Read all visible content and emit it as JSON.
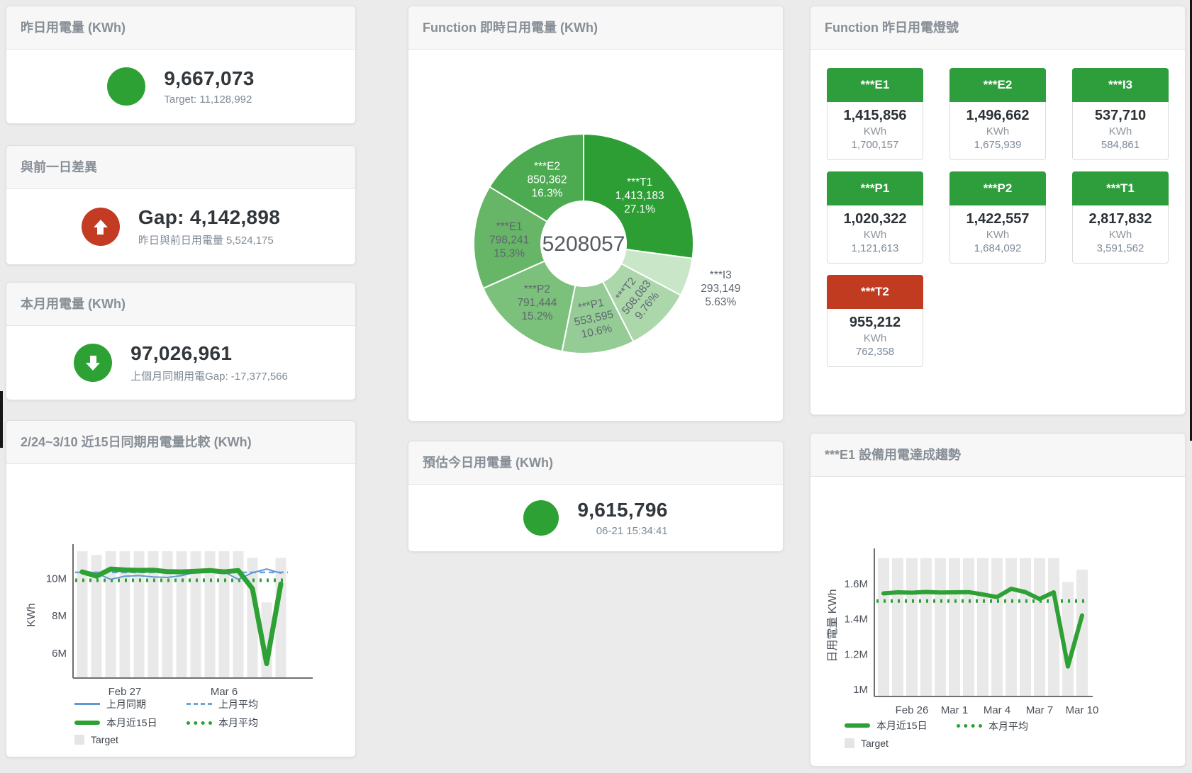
{
  "page": {
    "background": "#ebebeb"
  },
  "colors": {
    "green": "#2ea135",
    "red": "#c23b22",
    "blue_line": "#5e9ad0",
    "blue_dash": "#6aa3d8",
    "target_bar": "#e9e9e9",
    "tile_green": "#2e9e3c",
    "tile_red": "#c13b21"
  },
  "kpi": {
    "yesterday": {
      "title": "昨日用電量 (KWh)",
      "value": "9,667,073",
      "sub": "Target: 11,128,992"
    },
    "diff": {
      "title": "與前一日差異",
      "value": "Gap: 4,142,898",
      "sub": "昨日與前日用電量 5,524,175"
    },
    "month": {
      "title": "本月用電量 (KWh)",
      "value": "97,026,961",
      "sub": "上個月同期用電Gap: -17,377,566"
    },
    "estimate": {
      "title": "預估今日用電量 (KWh)",
      "value": "9,615,796",
      "sub": "06-21 15:34:41"
    }
  },
  "lights": {
    "title": "Function 昨日用電燈號",
    "tiles": [
      {
        "label": "***E1",
        "value": "1,415,856",
        "unit": "KWh",
        "target": "1,700,157",
        "status": "green"
      },
      {
        "label": "***E2",
        "value": "1,496,662",
        "unit": "KWh",
        "target": "1,675,939",
        "status": "green"
      },
      {
        "label": "***I3",
        "value": "537,710",
        "unit": "KWh",
        "target": "584,861",
        "status": "green"
      },
      {
        "label": "***P1",
        "value": "1,020,322",
        "unit": "KWh",
        "target": "1,121,613",
        "status": "green"
      },
      {
        "label": "***P2",
        "value": "1,422,557",
        "unit": "KWh",
        "target": "1,684,092",
        "status": "green"
      },
      {
        "label": "***T1",
        "value": "2,817,832",
        "unit": "KWh",
        "target": "3,591,562",
        "status": "green"
      },
      {
        "label": "***T2",
        "value": "955,212",
        "unit": "KWh",
        "target": "762,358",
        "status": "red"
      }
    ]
  },
  "chart_data": [
    {
      "id": "donut",
      "type": "pie",
      "title": "Function 即時日用電量 (KWh)",
      "center_total": "5208057",
      "segments": [
        {
          "name": "***T1",
          "value": 1413183,
          "value_label": "1,413,183",
          "pct_label": "27.1%",
          "color": "#2d9e34",
          "text": "#ffffff",
          "rotate": 0
        },
        {
          "name": "***I3",
          "value": 293149,
          "value_label": "293,149",
          "pct_label": "5.63%",
          "color": "#c9e6c9",
          "text": "#5f6670",
          "rotate": 0,
          "outside": true
        },
        {
          "name": "***T2",
          "value": 508083,
          "value_label": "508,083",
          "pct_label": "9.76%",
          "color": "#abd7ab",
          "text": "#5f6670",
          "rotate": -52
        },
        {
          "name": "***P1",
          "value": 553595,
          "value_label": "553,595",
          "pct_label": "10.6%",
          "color": "#95cc95",
          "text": "#5f6670",
          "rotate": -12
        },
        {
          "name": "***P2",
          "value": 791444,
          "value_label": "791,444",
          "pct_label": "15.2%",
          "color": "#7bc17b",
          "text": "#5f6670",
          "rotate": 0
        },
        {
          "name": "***E1",
          "value": 798241,
          "value_label": "798,241",
          "pct_label": "15.3%",
          "color": "#67b567",
          "text": "#5f6670",
          "rotate": 0
        },
        {
          "name": "***E2",
          "value": 850362,
          "value_label": "850,362",
          "pct_label": "16.3%",
          "color": "#4cab50",
          "text": "#ffffff",
          "rotate": 0
        }
      ]
    },
    {
      "id": "compare",
      "type": "line",
      "title": "2/24~3/10 近15日同期用電量比較 (KWh)",
      "ylabel": "KWh",
      "ylim": [
        4.68,
        11.45
      ],
      "n": 15,
      "yticks": [
        {
          "v": 6,
          "label": "6M"
        },
        {
          "v": 8,
          "label": "8M"
        },
        {
          "v": 10,
          "label": "10M"
        }
      ],
      "xticks": [
        {
          "i": 3,
          "label": "Feb 27"
        },
        {
          "i": 10,
          "label": "Mar 6"
        }
      ],
      "target_bars": [
        11.45,
        11.25,
        11.45,
        11.45,
        11.45,
        11.45,
        11.45,
        11.45,
        11.45,
        11.45,
        11.45,
        11.45,
        11.1,
        8.72,
        11.1
      ],
      "series": [
        {
          "name": "上月同期",
          "color": "#5e9ad0",
          "width": 2,
          "values": [
            10.4,
            10.28,
            9.95,
            10.12,
            10.15,
            10.08,
            10.05,
            10.15,
            10.33,
            10.5,
            10.35,
            9.95,
            10.3,
            10.5,
            10.28
          ]
        },
        {
          "name": "本月近15日",
          "color": "#2ea135",
          "width": 7,
          "values": [
            10.35,
            10.12,
            10.5,
            10.45,
            10.43,
            10.44,
            10.36,
            10.35,
            10.38,
            10.42,
            10.35,
            10.42,
            9.45,
            5.45,
            9.7
          ]
        }
      ],
      "avg_lines": [
        {
          "name": "上月平均",
          "value": 10.32,
          "color": "#6aa3d8",
          "dash": "8 5",
          "width": 2.5
        },
        {
          "name": "本月平均",
          "value": 9.9,
          "color": "#2ea135",
          "dash": "3 7",
          "width": 5
        }
      ],
      "legend_rows": [
        [
          {
            "label": "上月同期",
            "swatch": "line-blue"
          },
          {
            "label": "上月平均",
            "swatch": "dash-blue"
          }
        ],
        [
          {
            "label": "本月近15日",
            "swatch": "line-green"
          },
          {
            "label": "本月平均",
            "swatch": "dot-green"
          }
        ],
        [
          {
            "label": "Target",
            "swatch": "bar-gray"
          }
        ]
      ]
    },
    {
      "id": "e1trend",
      "type": "line",
      "title": "***E1 設備用電達成趨勢",
      "ylabel": "日用電量 KWh",
      "ylim": [
        0.96,
        1.76
      ],
      "n": 15,
      "yticks": [
        {
          "v": 1,
          "label": "1M"
        },
        {
          "v": 1.2,
          "label": "1.2M"
        },
        {
          "v": 1.4,
          "label": "1.4M"
        },
        {
          "v": 1.6,
          "label": "1.6M"
        }
      ],
      "xticks": [
        {
          "i": 2,
          "label": "Feb 26"
        },
        {
          "i": 5,
          "label": "Mar 1"
        },
        {
          "i": 8,
          "label": "Mar 4"
        },
        {
          "i": 11,
          "label": "Mar 7"
        },
        {
          "i": 14,
          "label": "Mar 10"
        }
      ],
      "target_bars": [
        1.745,
        1.745,
        1.745,
        1.745,
        1.745,
        1.745,
        1.745,
        1.745,
        1.745,
        1.745,
        1.745,
        1.745,
        1.745,
        1.61,
        1.68
      ],
      "series": [
        {
          "name": "本月近15日",
          "color": "#2ea135",
          "width": 6,
          "values": [
            1.545,
            1.551,
            1.549,
            1.553,
            1.55,
            1.551,
            1.552,
            1.539,
            1.524,
            1.571,
            1.552,
            1.513,
            1.551,
            1.13,
            1.42
          ]
        }
      ],
      "avg_lines": [
        {
          "name": "本月平均",
          "value": 1.502,
          "color": "#2ea135",
          "dash": "3 7",
          "width": 5
        }
      ],
      "legend_rows": [
        [
          {
            "label": "本月近15日",
            "swatch": "line-green"
          },
          {
            "label": "本月平均",
            "swatch": "dot-green"
          }
        ],
        [
          {
            "label": "Target",
            "swatch": "bar-gray"
          }
        ]
      ]
    }
  ]
}
